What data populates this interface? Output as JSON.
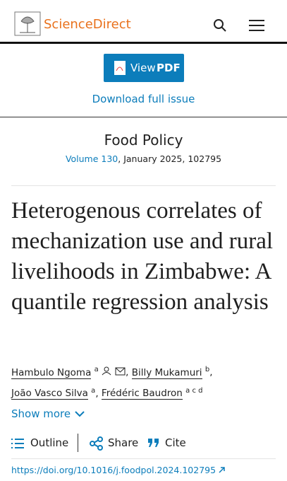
{
  "header": {
    "logo": "ScienceDirect"
  },
  "actions": {
    "view": "View",
    "pdf": "PDF",
    "download": "Download full issue"
  },
  "journal": {
    "name": "Food Policy",
    "volume": "Volume 130",
    "details": ", January 2025, 102795"
  },
  "article": {
    "title": "Heterogenous correlates of mechanization use and rural livelihoods in Zimbabwe: A quantile regression analysis",
    "separator": ",",
    "authors": [
      {
        "name": "Hambulo Ngoma",
        "aff": "a"
      },
      {
        "name": "Billy Mukamuri",
        "aff": "b"
      },
      {
        "name": "João Vasco Silva",
        "aff": "a"
      },
      {
        "name": "Frédéric Baudron",
        "aff": "a c d"
      }
    ],
    "show_more": "Show more"
  },
  "toolbar": {
    "outline": "Outline",
    "share": "Share",
    "cite": "Cite"
  },
  "doi": "https://doi.org/10.1016/j.foodpol.2024.102795"
}
